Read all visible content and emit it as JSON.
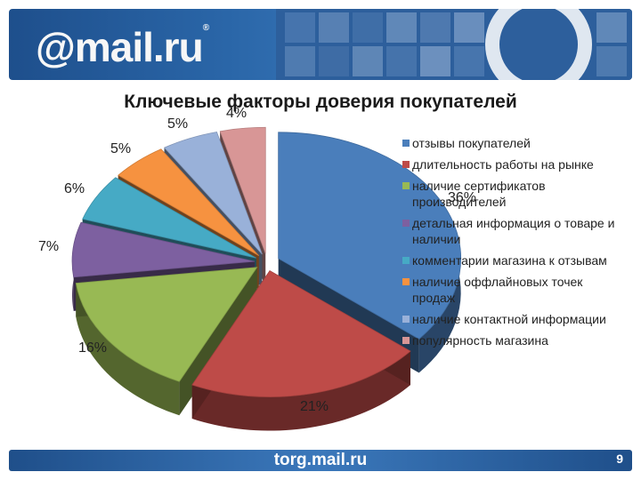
{
  "header": {
    "logo_text": "@mail.ru",
    "logo_mark": "®"
  },
  "chart_data": {
    "type": "pie",
    "title": "Ключевые факторы доверия покупателей",
    "legend_position": "right",
    "slices": [
      {
        "label": "отзывы покупателей",
        "value": 36,
        "value_label": "36%",
        "color": "#4a7ebb"
      },
      {
        "label": "длительность работы на рынке",
        "value": 21,
        "value_label": "21%",
        "color": "#be4b48"
      },
      {
        "label": "наличие сертификатов производителей",
        "value": 16,
        "value_label": "16%",
        "color": "#98b954"
      },
      {
        "label": "детальная информация о товаре и наличии",
        "value": 7,
        "value_label": "7%",
        "color": "#7d60a0"
      },
      {
        "label": "комментарии магазина к отзывам",
        "value": 6,
        "value_label": "6%",
        "color": "#46aac5"
      },
      {
        "label": "наличие оффлайновых точек продаж",
        "value": 5,
        "value_label": "5%",
        "color": "#f69240"
      },
      {
        "label": "наличие контактной информации",
        "value": 5,
        "value_label": "5%",
        "color": "#99b1d9"
      },
      {
        "label": "популярность магазина",
        "value": 4,
        "value_label": "4%",
        "color": "#d89696"
      }
    ]
  },
  "footer": {
    "site": "torg.mail.ru",
    "page_number": "9"
  }
}
